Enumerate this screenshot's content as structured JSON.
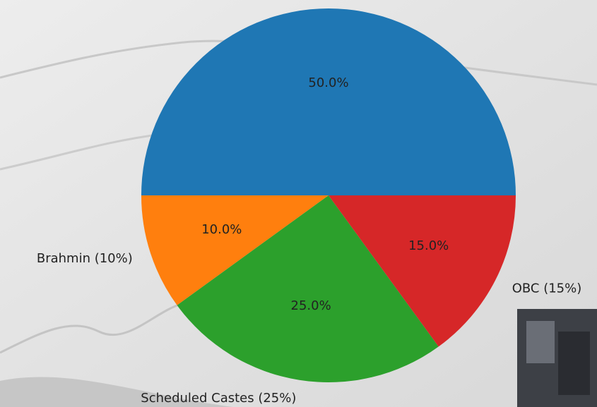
{
  "chart_data": {
    "type": "pie",
    "categories": [
      null,
      "Brahmin (10%)",
      "Scheduled Castes (25%)",
      "OBC (15%)"
    ],
    "values": [
      50,
      10,
      25,
      15
    ],
    "value_labels": [
      "50.0%",
      "10.0%",
      "25.0%",
      "15.0%"
    ],
    "colors": [
      "#1f77b4",
      "#ff7f0e",
      "#2ca02c",
      "#d62728"
    ]
  }
}
